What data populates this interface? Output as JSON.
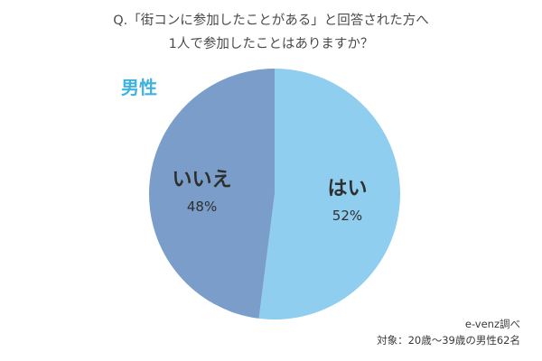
{
  "title": {
    "line1": "Q.「街コンに参加したことがある」と回答された方へ",
    "line2": "1人で参加したことはありますか？"
  },
  "group_label": "男性",
  "footer": {
    "source": "e-venz調べ",
    "target": "対象：20歳〜39歳の男性62名"
  },
  "colors": {
    "yes": "#8fceee",
    "no": "#7a9ec9",
    "group_label": "#3fb3e0"
  },
  "chart_data": {
    "type": "pie",
    "title": "Q.「街コンに参加したことがある」と回答された方へ 1人で参加したことはありますか？",
    "categories": [
      "はい",
      "いいえ"
    ],
    "values": [
      52,
      48
    ],
    "value_labels": [
      "52%",
      "48%"
    ],
    "unit": "%"
  }
}
